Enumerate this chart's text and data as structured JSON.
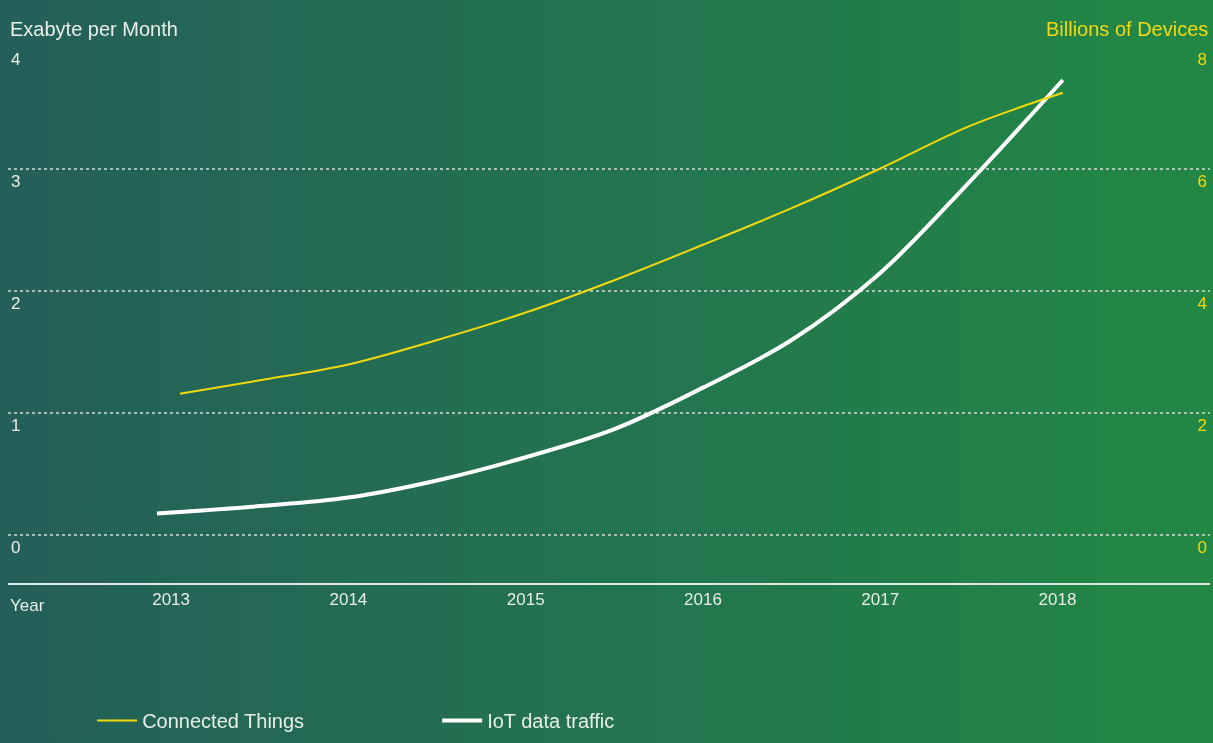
{
  "chart_data": {
    "type": "line",
    "xlabel": "Year",
    "ylabel": "Exabyte per Month",
    "y2label": "Billions of Devices",
    "xlim": [
      2012.08,
      2018.86
    ],
    "xticks": [
      2013,
      2014,
      2015,
      2016,
      2017,
      2018
    ],
    "ylim": [
      -0.39,
      4
    ],
    "yticks": [
      0,
      1,
      2,
      3,
      4
    ],
    "y2lim": [
      -0.78,
      8
    ],
    "y2ticks": [
      0,
      2,
      4,
      6,
      8
    ],
    "series": [
      {
        "name": "Connected Things",
        "color": "#f2d90f",
        "axis": "y2",
        "x": [
          2013.05,
          2013.5,
          2014,
          2014.5,
          2015,
          2015.5,
          2016,
          2016.5,
          2017,
          2017.5,
          2018.03
        ],
        "values": [
          2.32,
          2.54,
          2.8,
          3.2,
          3.65,
          4.18,
          4.76,
          5.36,
          6.01,
          6.7,
          7.25
        ]
      },
      {
        "name": "IoT data traffic",
        "color": "#ffffff",
        "x": [
          2012.92,
          2013.5,
          2014,
          2014.5,
          2015,
          2015.5,
          2016,
          2016.5,
          2017,
          2017.5,
          2018.03
        ],
        "values": [
          0.18,
          0.24,
          0.31,
          0.45,
          0.64,
          0.87,
          1.21,
          1.6,
          2.15,
          2.89,
          3.73
        ]
      }
    ],
    "grid": "y",
    "legend": "bottom",
    "marker": "none",
    "line_style": "solid"
  }
}
